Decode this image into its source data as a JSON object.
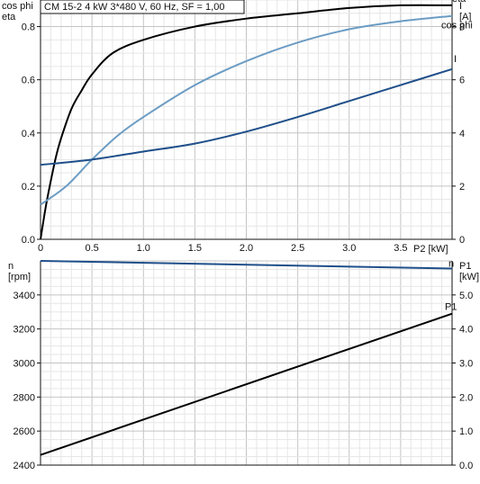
{
  "chart_data": [
    {
      "type": "line",
      "title": "CM 15-2   4 kW   3*480 V, 60 Hz, SF = 1,00",
      "xlabel": "P2 [kW]",
      "ylabel_left": "cos phi\neta",
      "ylabel_right": "I\n[A]",
      "xlim": [
        0,
        4.0
      ],
      "x_ticks": [
        0.0,
        0.5,
        1.0,
        1.5,
        2.0,
        2.5,
        3.0,
        3.5
      ],
      "x_tick_labels": [
        "0",
        "0.5",
        "1.0",
        "1.5",
        "2.0",
        "2.5",
        "3.0",
        "3.5"
      ],
      "ylim_left": [
        0,
        0.9
      ],
      "y_ticks_left": [
        0.0,
        0.2,
        0.4,
        0.6,
        0.8
      ],
      "y_tick_labels_left": [
        "0.0",
        "0.2",
        "0.4",
        "0.6",
        "0.8"
      ],
      "ylim_right": [
        0,
        9
      ],
      "y_ticks_right": [
        0,
        2,
        4,
        6,
        8
      ],
      "y_tick_labels_right": [
        "0",
        "2",
        "4",
        "6",
        "8"
      ],
      "grid": true,
      "series": [
        {
          "name": "eta",
          "axis": "left",
          "color": "#000000",
          "points": [
            [
              0,
              0
            ],
            [
              0.05,
              0.12
            ],
            [
              0.1,
              0.22
            ],
            [
              0.15,
              0.31
            ],
            [
              0.2,
              0.38
            ],
            [
              0.3,
              0.49
            ],
            [
              0.4,
              0.56
            ],
            [
              0.5,
              0.62
            ],
            [
              0.7,
              0.7
            ],
            [
              1.0,
              0.75
            ],
            [
              1.5,
              0.8
            ],
            [
              2.0,
              0.83
            ],
            [
              2.5,
              0.85
            ],
            [
              3.0,
              0.87
            ],
            [
              3.5,
              0.88
            ],
            [
              4.0,
              0.88
            ]
          ]
        },
        {
          "name": "cos phi",
          "axis": "left",
          "color": "#6b9cc4",
          "points": [
            [
              0,
              0.13
            ],
            [
              0.25,
              0.2
            ],
            [
              0.5,
              0.3
            ],
            [
              0.75,
              0.39
            ],
            [
              1.0,
              0.46
            ],
            [
              1.5,
              0.58
            ],
            [
              2.0,
              0.67
            ],
            [
              2.5,
              0.74
            ],
            [
              3.0,
              0.79
            ],
            [
              3.5,
              0.82
            ],
            [
              4.0,
              0.84
            ]
          ]
        },
        {
          "name": "I",
          "axis": "right",
          "color": "#1f4f8a",
          "points": [
            [
              0,
              2.8
            ],
            [
              0.5,
              3.0
            ],
            [
              1.0,
              3.3
            ],
            [
              1.5,
              3.6
            ],
            [
              2.0,
              4.05
            ],
            [
              2.5,
              4.6
            ],
            [
              3.0,
              5.2
            ],
            [
              3.5,
              5.8
            ],
            [
              4.0,
              6.4
            ]
          ]
        }
      ]
    },
    {
      "type": "line",
      "xlim": [
        0,
        4.0
      ],
      "x_ticks": [
        0.0,
        0.5,
        1.0,
        1.5,
        2.0,
        2.5,
        3.0,
        3.5
      ],
      "ylabel_left": "n\n[rpm]",
      "ylabel_right": "P1\n[kW]",
      "ylim_left": [
        2400,
        3600
      ],
      "y_ticks_left": [
        2400,
        2600,
        2800,
        3000,
        3200,
        3400
      ],
      "y_tick_labels_left": [
        "2400",
        "2600",
        "2800",
        "3000",
        "3200",
        "3400"
      ],
      "ylim_right": [
        0,
        6
      ],
      "y_ticks_right": [
        0,
        1,
        2,
        3,
        4,
        5
      ],
      "y_tick_labels_right": [
        "0.0",
        "1.0",
        "2.0",
        "3.0",
        "4.0",
        "5.0"
      ],
      "grid": true,
      "series": [
        {
          "name": "n",
          "axis": "left",
          "color": "#1f4f8a",
          "points": [
            [
              0,
              3600
            ],
            [
              4.0,
              3555
            ]
          ]
        },
        {
          "name": "P1",
          "axis": "right",
          "color": "#000000",
          "points": [
            [
              0,
              0.3
            ],
            [
              4.0,
              4.45
            ]
          ]
        }
      ]
    }
  ]
}
